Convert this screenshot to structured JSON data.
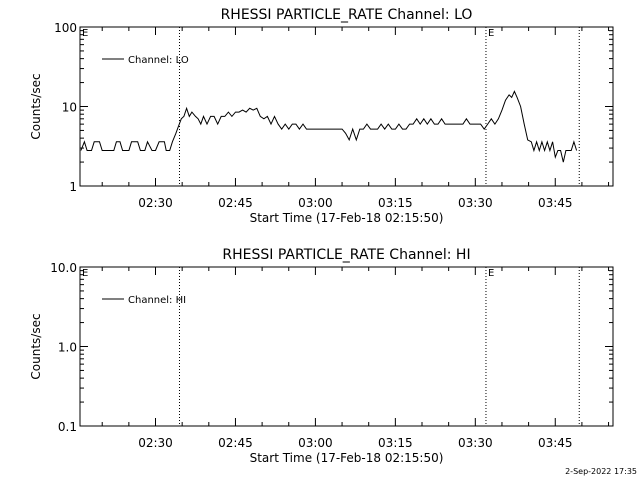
{
  "footer": "2-Sep-2022 17:35",
  "chart_data": [
    {
      "type": "line",
      "title": "RHESSI PARTICLE_RATE Channel: LO",
      "xlabel": "Start Time (17-Feb-18 02:15:50)",
      "ylabel": "Counts/sec",
      "yscale": "log",
      "ylim": [
        1,
        100
      ],
      "yticks": [
        "1",
        "10",
        "100"
      ],
      "xlim": [
        "02:15:50",
        "03:55:50"
      ],
      "xticks": [
        "02:30",
        "02:45",
        "03:00",
        "03:15",
        "03:30",
        "03:45"
      ],
      "event_lines": [
        "02:34:30",
        "03:32:00",
        "03:49:30"
      ],
      "event_markers": [
        {
          "time": "02:15:50",
          "label": "E"
        },
        {
          "time": "03:32:00",
          "label": "E"
        }
      ],
      "legend": {
        "position": "top-left",
        "entries": [
          "Channel: LO"
        ]
      },
      "series": [
        {
          "name": "Channel: LO",
          "points": [
            [
              "02:16:00",
              2.8
            ],
            [
              "02:16:40",
              3.6
            ],
            [
              "02:17:10",
              2.8
            ],
            [
              "02:18:00",
              2.8
            ],
            [
              "02:18:30",
              3.6
            ],
            [
              "02:19:30",
              3.6
            ],
            [
              "02:20:00",
              2.8
            ],
            [
              "02:22:10",
              2.8
            ],
            [
              "02:22:40",
              3.6
            ],
            [
              "02:23:20",
              3.6
            ],
            [
              "02:23:50",
              2.8
            ],
            [
              "02:25:00",
              2.8
            ],
            [
              "02:25:30",
              3.6
            ],
            [
              "02:26:40",
              3.6
            ],
            [
              "02:27:10",
              2.8
            ],
            [
              "02:28:00",
              2.8
            ],
            [
              "02:28:30",
              3.6
            ],
            [
              "02:29:20",
              2.8
            ],
            [
              "02:30:00",
              2.8
            ],
            [
              "02:30:40",
              3.6
            ],
            [
              "02:31:40",
              3.6
            ],
            [
              "02:32:00",
              2.8
            ],
            [
              "02:32:40",
              2.8
            ],
            [
              "02:33:10",
              3.6
            ],
            [
              "02:33:50",
              4.6
            ],
            [
              "02:34:20",
              5.7
            ],
            [
              "02:34:50",
              7.0
            ],
            [
              "02:35:20",
              7.5
            ],
            [
              "02:35:50",
              9.5
            ],
            [
              "02:36:20",
              7.5
            ],
            [
              "02:36:50",
              8.5
            ],
            [
              "02:37:30",
              7.5
            ],
            [
              "02:38:00",
              7.0
            ],
            [
              "02:38:30",
              6.0
            ],
            [
              "02:39:00",
              7.5
            ],
            [
              "02:39:40",
              6.0
            ],
            [
              "02:40:20",
              7.5
            ],
            [
              "02:41:00",
              7.5
            ],
            [
              "02:41:40",
              6.0
            ],
            [
              "02:42:20",
              7.5
            ],
            [
              "02:43:00",
              7.5
            ],
            [
              "02:43:40",
              8.5
            ],
            [
              "02:44:20",
              7.5
            ],
            [
              "02:45:00",
              8.5
            ],
            [
              "02:45:40",
              8.5
            ],
            [
              "02:46:20",
              9.0
            ],
            [
              "02:47:00",
              8.5
            ],
            [
              "02:47:40",
              9.5
            ],
            [
              "02:48:20",
              9.0
            ],
            [
              "02:49:00",
              9.5
            ],
            [
              "02:49:40",
              7.5
            ],
            [
              "02:50:20",
              7.0
            ],
            [
              "02:51:00",
              7.5
            ],
            [
              "02:51:40",
              6.0
            ],
            [
              "02:52:20",
              7.5
            ],
            [
              "02:53:00",
              6.0
            ],
            [
              "02:53:40",
              5.2
            ],
            [
              "02:54:20",
              6.0
            ],
            [
              "02:55:00",
              5.2
            ],
            [
              "02:55:40",
              6.0
            ],
            [
              "02:56:20",
              6.0
            ],
            [
              "02:57:00",
              5.2
            ],
            [
              "02:57:40",
              6.0
            ],
            [
              "02:58:20",
              5.2
            ],
            [
              "02:59:00",
              5.2
            ],
            [
              "03:00:00",
              5.2
            ],
            [
              "03:01:00",
              5.2
            ],
            [
              "03:02:00",
              5.2
            ],
            [
              "03:03:00",
              5.2
            ],
            [
              "03:04:00",
              5.2
            ],
            [
              "03:05:00",
              5.2
            ],
            [
              "03:05:40",
              4.6
            ],
            [
              "03:06:20",
              3.8
            ],
            [
              "03:07:00",
              5.2
            ],
            [
              "03:07:40",
              3.8
            ],
            [
              "03:08:20",
              5.2
            ],
            [
              "03:09:00",
              5.2
            ],
            [
              "03:09:40",
              6.0
            ],
            [
              "03:10:20",
              5.2
            ],
            [
              "03:11:00",
              5.2
            ],
            [
              "03:11:40",
              5.2
            ],
            [
              "03:12:20",
              6.0
            ],
            [
              "03:13:00",
              5.2
            ],
            [
              "03:13:40",
              6.0
            ],
            [
              "03:14:20",
              5.2
            ],
            [
              "03:15:00",
              5.2
            ],
            [
              "03:15:40",
              6.0
            ],
            [
              "03:16:20",
              5.2
            ],
            [
              "03:17:00",
              5.2
            ],
            [
              "03:17:40",
              6.0
            ],
            [
              "03:18:20",
              6.0
            ],
            [
              "03:19:00",
              7.0
            ],
            [
              "03:19:40",
              6.0
            ],
            [
              "03:20:20",
              7.0
            ],
            [
              "03:21:00",
              6.0
            ],
            [
              "03:21:40",
              7.0
            ],
            [
              "03:22:20",
              6.0
            ],
            [
              "03:23:00",
              6.0
            ],
            [
              "03:23:40",
              7.0
            ],
            [
              "03:24:20",
              6.0
            ],
            [
              "03:25:00",
              6.0
            ],
            [
              "03:25:40",
              6.0
            ],
            [
              "03:26:20",
              6.0
            ],
            [
              "03:27:00",
              6.0
            ],
            [
              "03:27:40",
              6.0
            ],
            [
              "03:28:20",
              7.0
            ],
            [
              "03:29:00",
              6.0
            ],
            [
              "03:29:40",
              6.0
            ],
            [
              "03:30:20",
              6.0
            ],
            [
              "03:31:00",
              6.0
            ],
            [
              "03:31:40",
              5.2
            ],
            [
              "03:32:20",
              6.0
            ],
            [
              "03:33:00",
              7.0
            ],
            [
              "03:33:40",
              6.0
            ],
            [
              "03:34:20",
              7.0
            ],
            [
              "03:35:00",
              9.0
            ],
            [
              "03:35:40",
              12.0
            ],
            [
              "03:36:20",
              14.0
            ],
            [
              "03:36:50",
              13.0
            ],
            [
              "03:37:20",
              15.5
            ],
            [
              "03:37:50",
              13.0
            ],
            [
              "03:38:30",
              10.0
            ],
            [
              "03:39:10",
              6.0
            ],
            [
              "03:39:50",
              3.8
            ],
            [
              "03:40:30",
              3.6
            ],
            [
              "03:41:00",
              2.8
            ],
            [
              "03:41:30",
              3.6
            ],
            [
              "03:42:00",
              2.8
            ],
            [
              "03:42:30",
              3.6
            ],
            [
              "03:43:00",
              2.8
            ],
            [
              "03:43:30",
              3.6
            ],
            [
              "03:44:00",
              2.8
            ],
            [
              "03:44:30",
              3.6
            ],
            [
              "03:45:00",
              2.3
            ],
            [
              "03:45:30",
              2.8
            ],
            [
              "03:46:00",
              2.8
            ],
            [
              "03:46:30",
              2.0
            ],
            [
              "03:47:00",
              2.8
            ],
            [
              "03:47:30",
              2.8
            ],
            [
              "03:48:00",
              2.8
            ],
            [
              "03:48:30",
              3.6
            ],
            [
              "03:49:00",
              2.8
            ]
          ]
        }
      ]
    },
    {
      "type": "line",
      "title": "RHESSI PARTICLE_RATE Channel: HI",
      "xlabel": "Start Time (17-Feb-18 02:15:50)",
      "ylabel": "Counts/sec",
      "yscale": "log",
      "ylim": [
        0.1,
        10
      ],
      "yticks": [
        "0.1",
        "1.0",
        "10.0"
      ],
      "xlim": [
        "02:15:50",
        "03:55:50"
      ],
      "xticks": [
        "02:30",
        "02:45",
        "03:00",
        "03:15",
        "03:30",
        "03:45"
      ],
      "event_lines": [
        "02:34:30",
        "03:32:00",
        "03:49:30"
      ],
      "event_markers": [
        {
          "time": "02:15:50",
          "label": "E"
        },
        {
          "time": "03:32:00",
          "label": "E"
        }
      ],
      "legend": {
        "position": "top-left",
        "entries": [
          "Channel: HI"
        ]
      },
      "series": [
        {
          "name": "Channel: HI",
          "points": []
        }
      ]
    }
  ]
}
